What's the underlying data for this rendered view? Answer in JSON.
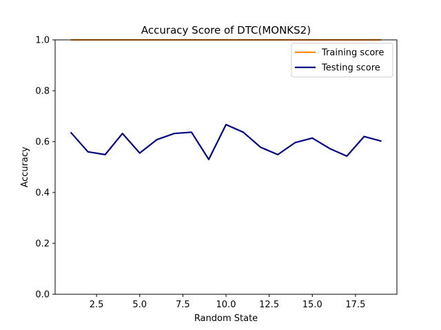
{
  "chart_data": {
    "type": "line",
    "title": "Accuracy Score of DTC(MONKS2)",
    "xlabel": "Random State",
    "ylabel": "Accuracy",
    "xlim": [
      0.1,
      19.9
    ],
    "ylim": [
      0.0,
      1.0
    ],
    "xticks": [
      2.5,
      5.0,
      7.5,
      10.0,
      12.5,
      15.0,
      17.5
    ],
    "xtick_labels": [
      "2.5",
      "5.0",
      "7.5",
      "10.0",
      "12.5",
      "15.0",
      "17.5"
    ],
    "yticks": [
      0.0,
      0.2,
      0.4,
      0.6,
      0.8,
      1.0
    ],
    "ytick_labels": [
      "0.0",
      "0.2",
      "0.4",
      "0.6",
      "0.8",
      "1.0"
    ],
    "grid": false,
    "legend_position": "top-right",
    "x": [
      1,
      2,
      3,
      4,
      5,
      6,
      7,
      8,
      9,
      10,
      11,
      12,
      13,
      14,
      15,
      16,
      17,
      18,
      19
    ],
    "series": [
      {
        "name": "Training score",
        "color": "#ff8c00",
        "values": [
          1,
          1,
          1,
          1,
          1,
          1,
          1,
          1,
          1,
          1,
          1,
          1,
          1,
          1,
          1,
          1,
          1,
          1,
          1
        ]
      },
      {
        "name": "Testing score",
        "color": "#000080",
        "values": [
          0.637,
          0.56,
          0.549,
          0.632,
          0.555,
          0.608,
          0.632,
          0.637,
          0.53,
          0.667,
          0.637,
          0.578,
          0.549,
          0.596,
          0.614,
          0.573,
          0.543,
          0.62,
          0.602
        ]
      }
    ]
  }
}
